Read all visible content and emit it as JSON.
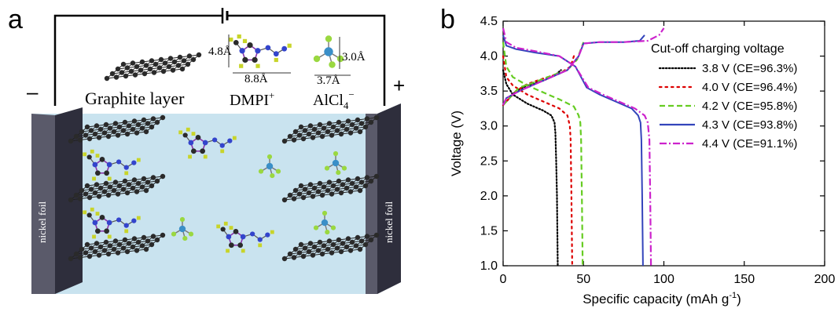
{
  "panel_a": {
    "label": "a",
    "graphite_label": "Graphite layer",
    "dmpi_label": "DMPI",
    "dmpi_sup": "+",
    "alcl_label": "AlCl",
    "alcl_sub": "4",
    "alcl_sup": "−",
    "dim_dmpi_height": "4.8Å",
    "dim_dmpi_width": "8.8Å",
    "dim_alcl_height": "3.0Å",
    "dim_alcl_width": "3.7Å",
    "minus_sign": "–",
    "plus_sign": "+",
    "left_foil_label": "nickel foil",
    "right_foil_label": "nickel foil",
    "colors": {
      "electrolyte": "#c9e3ef",
      "foil": "#3a3a4a",
      "carbon": "#2a2a2a",
      "nitrogen": "#3344cc",
      "hydrogen": "#c8d42a",
      "aluminum": "#3a8fc8",
      "chlorine": "#9ad840"
    }
  },
  "panel_b": {
    "label": "b",
    "legend_title": "Cut-off charging voltage"
  },
  "chart_data": {
    "type": "line",
    "xlabel": "Specific capacity (mAh g",
    "xlabel_sup": "-1",
    "xlabel_end": ")",
    "ylabel": "Voltage (V)",
    "xlim": [
      0,
      200
    ],
    "ylim": [
      1.0,
      4.5
    ],
    "x_ticks": [
      0,
      50,
      100,
      150,
      200
    ],
    "y_ticks": [
      1.0,
      1.5,
      2.0,
      2.5,
      3.0,
      3.5,
      4.0,
      4.5
    ],
    "legend_position": "top-right",
    "series": [
      {
        "name": "3.8 V (CE=96.3%)",
        "color": "#000000",
        "dash": "dotted",
        "charge": [
          [
            0,
            3.3
          ],
          [
            2,
            3.35
          ],
          [
            8,
            3.5
          ],
          [
            15,
            3.58
          ],
          [
            25,
            3.65
          ],
          [
            32,
            3.72
          ],
          [
            36,
            3.8
          ]
        ],
        "discharge": [
          [
            0,
            3.8
          ],
          [
            2,
            3.6
          ],
          [
            6,
            3.45
          ],
          [
            15,
            3.32
          ],
          [
            25,
            3.22
          ],
          [
            30,
            3.15
          ],
          [
            32,
            3.05
          ],
          [
            32.5,
            2.9
          ],
          [
            33,
            2.5
          ],
          [
            33.5,
            2.0
          ],
          [
            34,
            1.0
          ]
        ]
      },
      {
        "name": "4.0 V (CE=96.4%)",
        "color": "#dd0000",
        "dash": "dotted-wide",
        "charge": [
          [
            0,
            3.3
          ],
          [
            2,
            3.35
          ],
          [
            8,
            3.5
          ],
          [
            15,
            3.6
          ],
          [
            25,
            3.68
          ],
          [
            35,
            3.75
          ],
          [
            42,
            3.85
          ],
          [
            44,
            4.0
          ]
        ],
        "discharge": [
          [
            0,
            4.0
          ],
          [
            2,
            3.7
          ],
          [
            6,
            3.58
          ],
          [
            15,
            3.45
          ],
          [
            25,
            3.35
          ],
          [
            35,
            3.25
          ],
          [
            40,
            3.15
          ],
          [
            41.5,
            3.0
          ],
          [
            42,
            2.8
          ],
          [
            42.5,
            2.0
          ],
          [
            43,
            1.0
          ]
        ]
      },
      {
        "name": "4.2 V (CE=95.8%)",
        "color": "#66cc22",
        "dash": "dashed",
        "charge": [
          [
            0,
            3.3
          ],
          [
            2,
            3.35
          ],
          [
            10,
            3.55
          ],
          [
            20,
            3.63
          ],
          [
            30,
            3.72
          ],
          [
            40,
            3.8
          ],
          [
            46,
            3.95
          ],
          [
            50,
            4.2
          ]
        ],
        "discharge": [
          [
            0,
            4.2
          ],
          [
            2,
            3.85
          ],
          [
            6,
            3.7
          ],
          [
            15,
            3.58
          ],
          [
            25,
            3.48
          ],
          [
            35,
            3.38
          ],
          [
            44,
            3.28
          ],
          [
            47,
            3.15
          ],
          [
            48,
            3.05
          ],
          [
            48.5,
            2.8
          ],
          [
            49,
            2.0
          ],
          [
            49.5,
            1.0
          ]
        ]
      },
      {
        "name": "4.3 V (CE=93.8%)",
        "color": "#3344bb",
        "dash": "solid",
        "charge": [
          [
            0,
            3.3
          ],
          [
            2,
            3.4
          ],
          [
            10,
            3.5
          ],
          [
            20,
            3.6
          ],
          [
            30,
            3.7
          ],
          [
            40,
            3.8
          ],
          [
            47,
            4.0
          ],
          [
            50,
            4.18
          ],
          [
            60,
            4.2
          ],
          [
            75,
            4.2
          ],
          [
            85,
            4.22
          ],
          [
            88,
            4.3
          ]
        ],
        "discharge": [
          [
            0,
            4.3
          ],
          [
            2,
            4.15
          ],
          [
            8,
            4.1
          ],
          [
            20,
            4.05
          ],
          [
            35,
            4.0
          ],
          [
            45,
            3.85
          ],
          [
            52,
            3.55
          ],
          [
            60,
            3.45
          ],
          [
            70,
            3.35
          ],
          [
            80,
            3.25
          ],
          [
            84,
            3.15
          ],
          [
            85.5,
            3.05
          ],
          [
            86,
            2.8
          ],
          [
            86.5,
            2.0
          ],
          [
            87,
            1.0
          ]
        ]
      },
      {
        "name": "4.4 V (CE=91.1%)",
        "color": "#cc22cc",
        "dash": "dashdot",
        "charge": [
          [
            0,
            3.3
          ],
          [
            2,
            3.4
          ],
          [
            10,
            3.5
          ],
          [
            20,
            3.6
          ],
          [
            30,
            3.7
          ],
          [
            40,
            3.8
          ],
          [
            47,
            4.0
          ],
          [
            50,
            4.18
          ],
          [
            60,
            4.2
          ],
          [
            75,
            4.2
          ],
          [
            90,
            4.22
          ],
          [
            97,
            4.3
          ],
          [
            100,
            4.4
          ]
        ],
        "discharge": [
          [
            0,
            4.4
          ],
          [
            2,
            4.2
          ],
          [
            8,
            4.12
          ],
          [
            20,
            4.07
          ],
          [
            35,
            4.0
          ],
          [
            45,
            3.85
          ],
          [
            53,
            3.55
          ],
          [
            62,
            3.45
          ],
          [
            72,
            3.35
          ],
          [
            82,
            3.25
          ],
          [
            88,
            3.15
          ],
          [
            90,
            3.05
          ],
          [
            91,
            2.8
          ],
          [
            91.5,
            2.0
          ],
          [
            92,
            1.0
          ]
        ]
      }
    ]
  }
}
